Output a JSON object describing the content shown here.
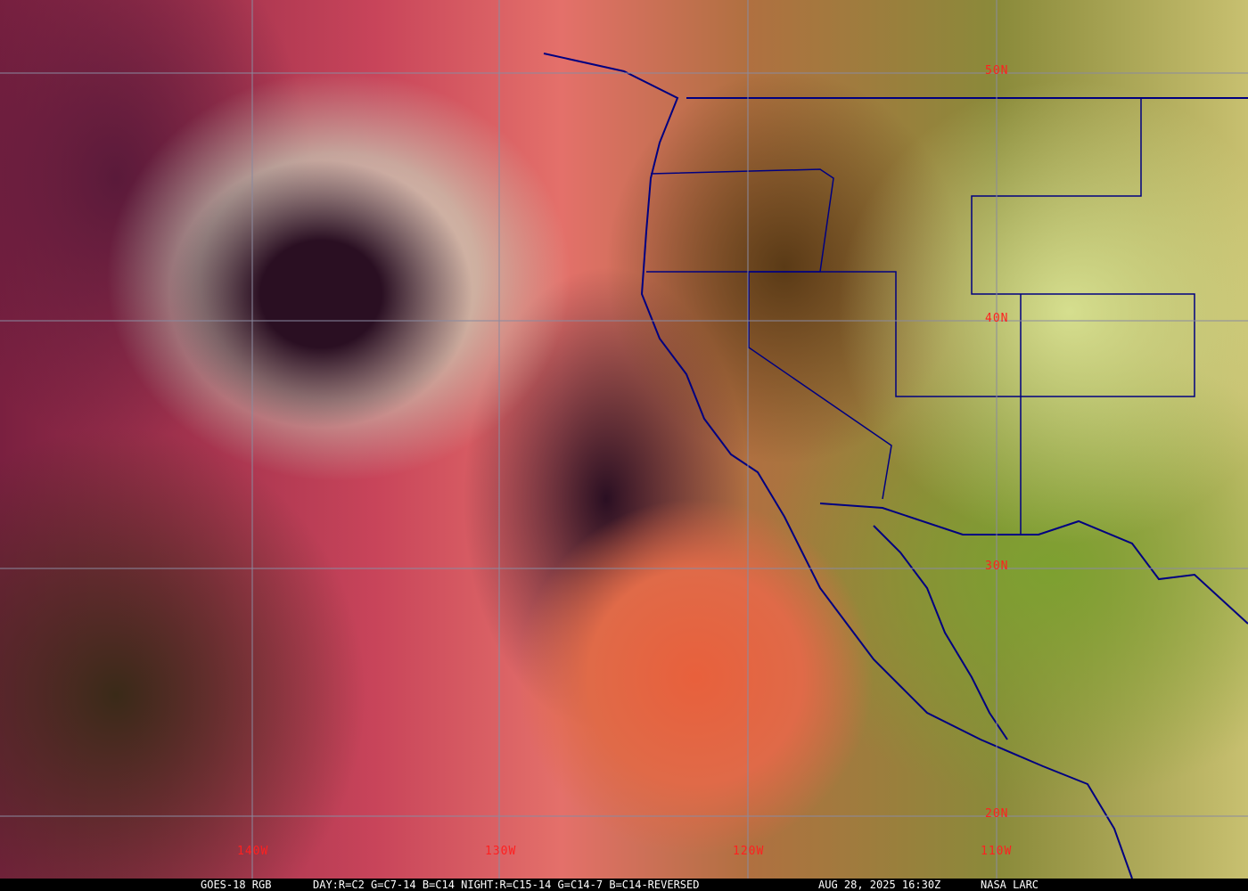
{
  "map": {
    "latitude_labels": [
      "50N",
      "40N",
      "30N",
      "20N"
    ],
    "longitude_labels": [
      "140W",
      "130W",
      "120W",
      "110W"
    ],
    "label_color": "#ff2020",
    "grid_color": "#8a8aa0",
    "border_color": "#000080"
  },
  "caption": {
    "product": "GOES-18 RGB",
    "recipe": "DAY:R=C2 G=C7-14 B=C14 NIGHT:R=C15-14 G=C14-7 B=C14-REVERSED",
    "datetime": "AUG 28, 2025 16:30Z",
    "credit": "NASA LARC"
  }
}
